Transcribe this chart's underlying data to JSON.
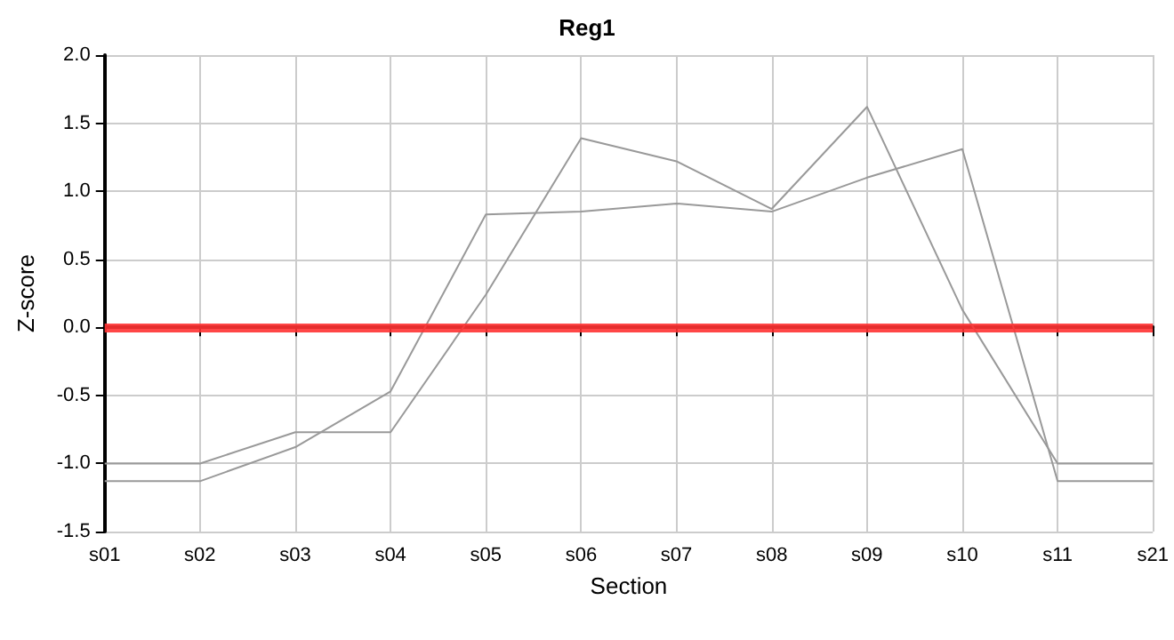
{
  "chart_data": {
    "type": "line",
    "title": "Reg1",
    "xlabel": "Section",
    "ylabel": "Z-score",
    "categories": [
      "s01",
      "s02",
      "s03",
      "s04",
      "s05",
      "s06",
      "s07",
      "s08",
      "s09",
      "s10",
      "s11",
      "s21"
    ],
    "series": [
      {
        "color": "#999999",
        "values": [
          -1.0,
          -1.0,
          -0.77,
          -0.77,
          0.24,
          1.39,
          1.22,
          0.87,
          1.62,
          0.13,
          -1.0,
          -1.0
        ]
      },
      {
        "color": "#999999",
        "values": [
          -1.13,
          -1.13,
          -0.88,
          -0.47,
          0.83,
          0.85,
          0.91,
          0.85,
          1.1,
          1.31,
          -1.13,
          -1.13
        ]
      }
    ],
    "ylim": [
      -1.5,
      2.0
    ],
    "yticks": [
      -1.5,
      {
        "value": -1,
        "label": "-1.0"
      },
      -0.5,
      {
        "value": 0,
        "label": "0.0"
      },
      0.5,
      {
        "value": 1,
        "label": "1.0"
      },
      1.5,
      {
        "value": 2,
        "label": "2.0"
      }
    ],
    "ref_lines": [
      {
        "axis": "y",
        "value": 0,
        "color": "#ff3333"
      }
    ],
    "grid": true,
    "marker": "none",
    "line_style": "solid"
  }
}
